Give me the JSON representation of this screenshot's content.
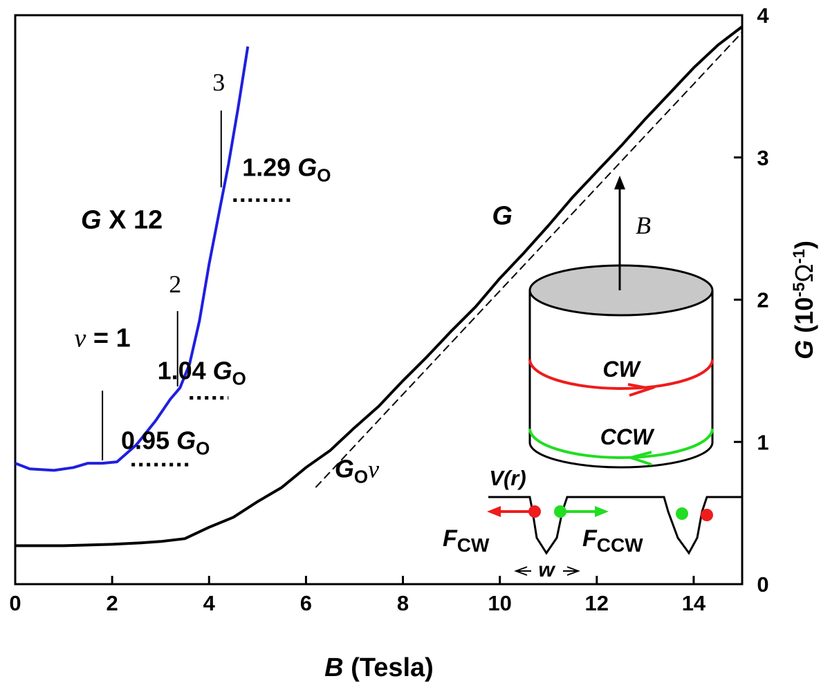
{
  "chart_data": {
    "type": "line",
    "xlabel": {
      "symbol": "B",
      "text": " (Tesla)"
    },
    "ylabel": {
      "symbol": "G",
      "text": " (10",
      "exp1": "-5",
      "omega": "Ω",
      "exp2": "-1",
      "close": ")"
    },
    "xlim": [
      0,
      15
    ],
    "ylim": [
      0,
      4
    ],
    "x_ticks": [
      0,
      2,
      4,
      6,
      8,
      10,
      12,
      14
    ],
    "y_ticks": [
      0,
      1,
      2,
      3,
      4
    ],
    "grid": false,
    "series": [
      {
        "name": "G",
        "color": "#000000",
        "style": "solid",
        "points": [
          [
            0,
            0.27
          ],
          [
            1,
            0.27
          ],
          [
            2,
            0.28
          ],
          [
            2.6,
            0.29
          ],
          [
            3.0,
            0.3
          ],
          [
            3.5,
            0.32
          ],
          [
            4,
            0.4
          ],
          [
            4.5,
            0.47
          ],
          [
            5,
            0.58
          ],
          [
            5.5,
            0.68
          ],
          [
            6,
            0.82
          ],
          [
            6.5,
            0.94
          ],
          [
            7,
            1.1
          ],
          [
            7.5,
            1.25
          ],
          [
            8,
            1.43
          ],
          [
            8.5,
            1.6
          ],
          [
            9,
            1.78
          ],
          [
            9.5,
            1.95
          ],
          [
            10,
            2.15
          ],
          [
            10.5,
            2.33
          ],
          [
            11,
            2.52
          ],
          [
            11.5,
            2.72
          ],
          [
            12,
            2.9
          ],
          [
            12.5,
            3.08
          ],
          [
            13,
            3.27
          ],
          [
            13.5,
            3.45
          ],
          [
            14,
            3.63
          ],
          [
            14.5,
            3.79
          ],
          [
            15,
            3.92
          ]
        ]
      },
      {
        "name": "G_O ν",
        "color": "#000000",
        "style": "dashed",
        "points": [
          [
            6.2,
            0.68
          ],
          [
            15,
            3.88
          ]
        ]
      },
      {
        "name": "G X 12",
        "color": "#1f1fe0",
        "style": "solid",
        "points": [
          [
            0,
            0.85
          ],
          [
            0.3,
            0.81
          ],
          [
            0.8,
            0.8
          ],
          [
            1.2,
            0.82
          ],
          [
            1.5,
            0.85
          ],
          [
            1.8,
            0.85
          ],
          [
            2.1,
            0.86
          ],
          [
            2.5,
            0.98
          ],
          [
            2.9,
            1.15
          ],
          [
            3.2,
            1.3
          ],
          [
            3.4,
            1.38
          ],
          [
            3.6,
            1.55
          ],
          [
            3.8,
            1.85
          ],
          [
            4.0,
            2.25
          ],
          [
            4.2,
            2.6
          ],
          [
            4.4,
            2.95
          ],
          [
            4.6,
            3.35
          ],
          [
            4.8,
            3.78
          ]
        ]
      }
    ],
    "annotations": [
      {
        "key": "g_label",
        "text": "G",
        "x": 10.05,
        "y": 2.53
      },
      {
        "key": "gx12_label",
        "text": "G X 12",
        "x": 2.2,
        "y": 2.5
      },
      {
        "key": "nu1_label",
        "text": "ν = 1",
        "x": 1.8,
        "y": 1.67
      },
      {
        "key": "fill2_label",
        "text": "2",
        "x": 3.3,
        "y": 2.05
      },
      {
        "key": "fill3_label",
        "text": "3",
        "x": 4.2,
        "y": 3.47
      },
      {
        "key": "val095_label",
        "text": "0.95 G",
        "sub": "O",
        "x": 3.1,
        "y": 0.95
      },
      {
        "key": "val104_label",
        "text": "1.04 G",
        "sub": "O",
        "x": 3.85,
        "y": 1.44
      },
      {
        "key": "val129_label",
        "text": "1.29 G",
        "sub": "O",
        "x": 5.6,
        "y": 2.87
      },
      {
        "key": "g0nu_label",
        "text": "G",
        "sub": "O",
        "extra": "ν",
        "x": 7.05,
        "y": 0.75
      }
    ],
    "inset": {
      "b_label": "B",
      "cw_label": "CW",
      "ccw_label": "CCW",
      "vr_label": "V(r)",
      "fcw_label": "F",
      "fcw_sub": "CW",
      "fccw_label": "F",
      "fccw_sub": "CCW",
      "w_label": "w",
      "colors": {
        "cw": "#ee1c1c",
        "ccw": "#22dd22",
        "top": "#c8c8c8"
      }
    }
  }
}
